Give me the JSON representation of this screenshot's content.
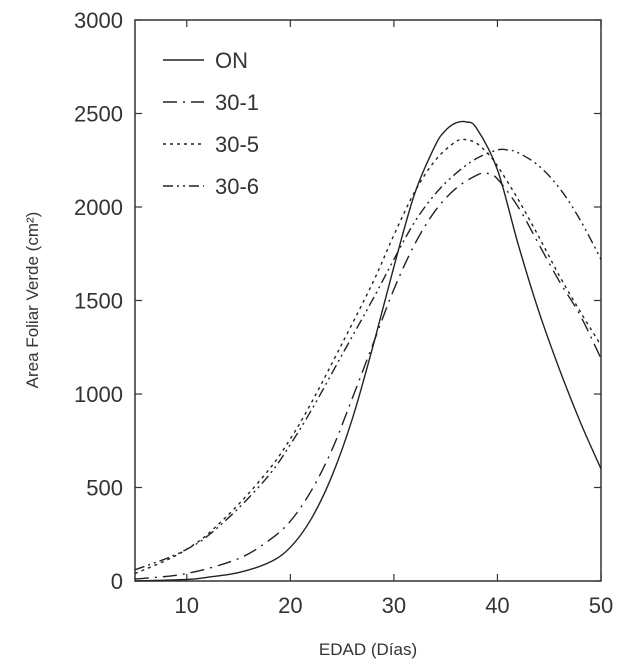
{
  "chart_data": {
    "type": "line",
    "xlabel": "EDAD (Días)",
    "ylabel": "Area Foliar Verde (cm²)",
    "xlim": [
      5,
      50
    ],
    "ylim": [
      0,
      3000
    ],
    "x_ticks": [
      10,
      20,
      30,
      40,
      50
    ],
    "y_ticks": [
      0,
      500,
      1000,
      1500,
      2000,
      2500,
      3000
    ],
    "grid": false,
    "legend_position": "top-left",
    "series": [
      {
        "name": "ON",
        "dash": "solid",
        "x": [
          5,
          10,
          12,
          15,
          18,
          20,
          22,
          24,
          26,
          28,
          30,
          32,
          34,
          35,
          36,
          37,
          38,
          40,
          42,
          44,
          46,
          48,
          50
        ],
        "y": [
          0,
          8,
          20,
          45,
          100,
          180,
          330,
          560,
          870,
          1260,
          1680,
          2070,
          2330,
          2410,
          2450,
          2455,
          2420,
          2200,
          1800,
          1440,
          1130,
          850,
          600
        ]
      },
      {
        "name": "30-1",
        "dash": "dash-dot",
        "x": [
          5,
          10,
          15,
          18,
          20,
          22,
          24,
          26,
          28,
          30,
          32,
          34,
          36,
          38,
          39,
          40,
          42,
          44,
          46,
          48,
          50
        ],
        "y": [
          10,
          40,
          120,
          220,
          320,
          480,
          700,
          980,
          1270,
          1560,
          1800,
          1980,
          2100,
          2170,
          2180,
          2150,
          2000,
          1800,
          1600,
          1420,
          1190
        ]
      },
      {
        "name": "30-5",
        "dash": "dotted",
        "x": [
          5,
          8,
          10,
          12,
          15,
          18,
          20,
          22,
          25,
          28,
          30,
          32,
          34,
          36,
          37,
          38,
          39,
          40,
          42,
          44,
          46,
          48,
          50
        ],
        "y": [
          40,
          110,
          170,
          250,
          410,
          600,
          760,
          950,
          1270,
          1600,
          1850,
          2080,
          2250,
          2350,
          2360,
          2340,
          2290,
          2220,
          2040,
          1840,
          1630,
          1440,
          1260
        ]
      },
      {
        "name": "30-6",
        "dash": "dash-dot-dot",
        "x": [
          5,
          8,
          10,
          12,
          15,
          18,
          20,
          22,
          25,
          28,
          30,
          32,
          34,
          36,
          38,
          40,
          41,
          42,
          44,
          46,
          48,
          50
        ],
        "y": [
          60,
          120,
          170,
          240,
          390,
          570,
          730,
          910,
          1210,
          1510,
          1720,
          1920,
          2070,
          2180,
          2260,
          2305,
          2305,
          2290,
          2220,
          2100,
          1930,
          1720
        ]
      }
    ]
  }
}
